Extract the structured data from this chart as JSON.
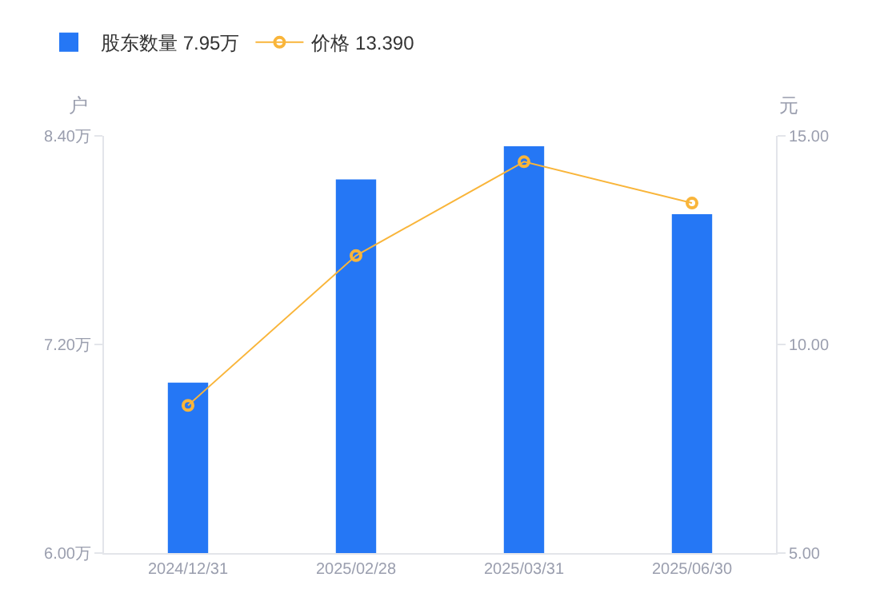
{
  "chart_data": {
    "type": "bar",
    "ylabel": "户",
    "y2label": "元",
    "categories": [
      "2024/12/31",
      "2025/02/28",
      "2025/03/31",
      "2025/06/30"
    ],
    "series": [
      {
        "name": "股东数量 7.95万",
        "color": "#2577f5",
        "values": [
          6.98,
          8.15,
          8.34,
          7.95
        ]
      },
      {
        "name": "价格 13.390",
        "type": "line",
        "axis": "y2",
        "color": "#f9b53a",
        "marker": "circle",
        "values": [
          8.54,
          12.13,
          14.38,
          13.39
        ]
      }
    ],
    "ylim": [
      6,
      8.4
    ],
    "yticks": [
      {
        "value": 6,
        "label": "6.00万"
      },
      {
        "value": 7.2,
        "label": "7.20万"
      },
      {
        "value": 8.4,
        "label": "8.40万"
      }
    ],
    "y2lim": [
      5,
      15
    ],
    "y2ticks": [
      {
        "value": 5,
        "label": "5.00"
      },
      {
        "value": 10,
        "label": "10.00"
      },
      {
        "value": 15,
        "label": "15.00"
      }
    ],
    "grid": false,
    "legend": "top left"
  }
}
